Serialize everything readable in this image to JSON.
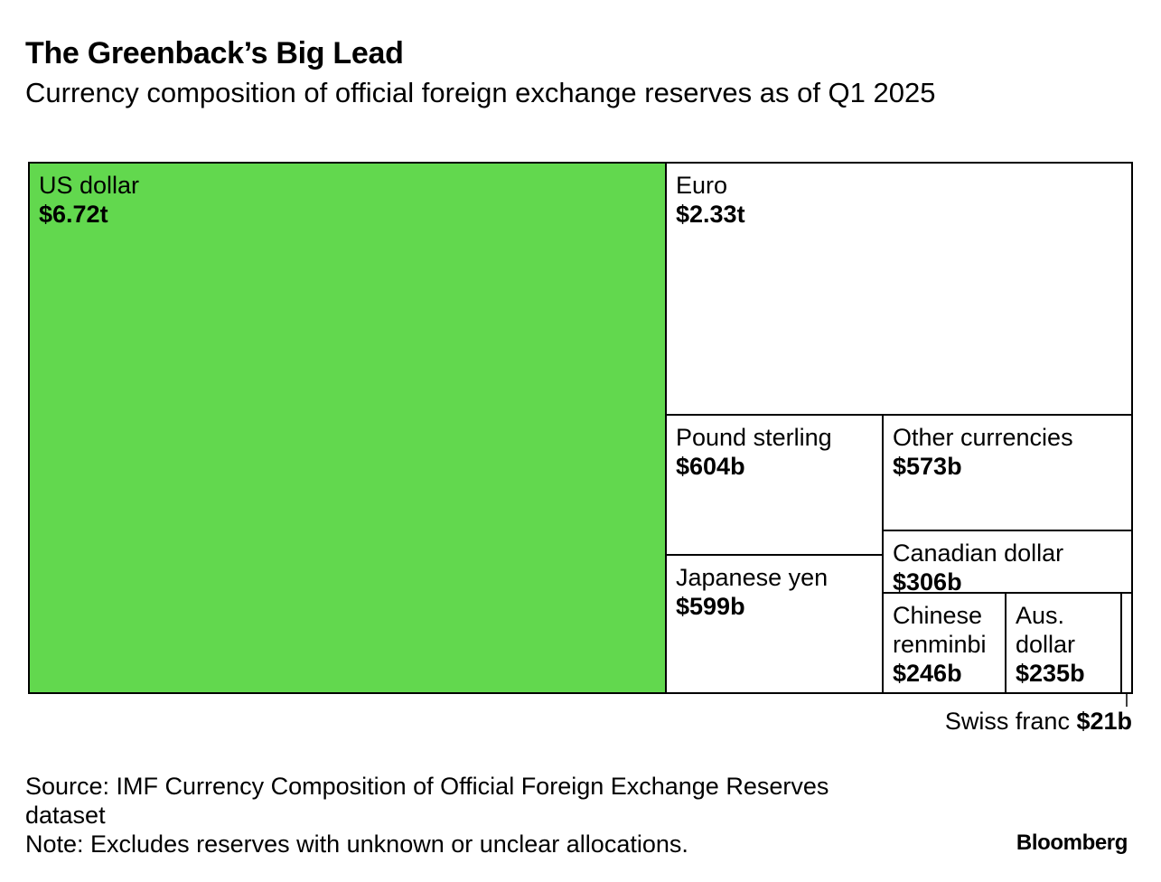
{
  "header": {
    "title": "The Greenback’s Big Lead",
    "subtitle": "Currency composition of official foreign exchange reserves as of Q1 2025"
  },
  "chart_data": {
    "type": "treemap",
    "title": "The Greenback’s Big Lead",
    "subtitle": "Currency composition of official foreign exchange reserves as of Q1 2025",
    "unit": "USD",
    "highlight_color": "#62d84e",
    "items": [
      {
        "name": "US dollar",
        "label_lines": [
          "US dollar"
        ],
        "value_label": "$6.72t",
        "value": 6720,
        "highlight": true
      },
      {
        "name": "Euro",
        "label_lines": [
          "Euro"
        ],
        "value_label": "$2.33t",
        "value": 2330
      },
      {
        "name": "Pound sterling",
        "label_lines": [
          "Pound sterling"
        ],
        "value_label": "$604b",
        "value": 604
      },
      {
        "name": "Japanese yen",
        "label_lines": [
          "Japanese yen"
        ],
        "value_label": "$599b",
        "value": 599
      },
      {
        "name": "Other currencies",
        "label_lines": [
          "Other currencies"
        ],
        "value_label": "$573b",
        "value": 573
      },
      {
        "name": "Canadian dollar",
        "label_lines": [
          "Canadian dollar"
        ],
        "value_label": "$306b",
        "value": 306
      },
      {
        "name": "Chinese renminbi",
        "label_lines": [
          "Chinese",
          "renminbi"
        ],
        "value_label": "$246b",
        "value": 246
      },
      {
        "name": "Aus. dollar",
        "label_lines": [
          "Aus.",
          "dollar"
        ],
        "value_label": "$235b",
        "value": 235
      },
      {
        "name": "Swiss franc",
        "label_lines": [
          "Swiss franc"
        ],
        "value_label": "$21b",
        "value": 21,
        "external_label": true
      }
    ]
  },
  "footer": {
    "source_line1": "Source: IMF Currency Composition of Official Foreign Exchange Reserves",
    "source_line2": "dataset",
    "note": "Note: Excludes reserves with unknown or unclear allocations.",
    "brand": "Bloomberg"
  }
}
